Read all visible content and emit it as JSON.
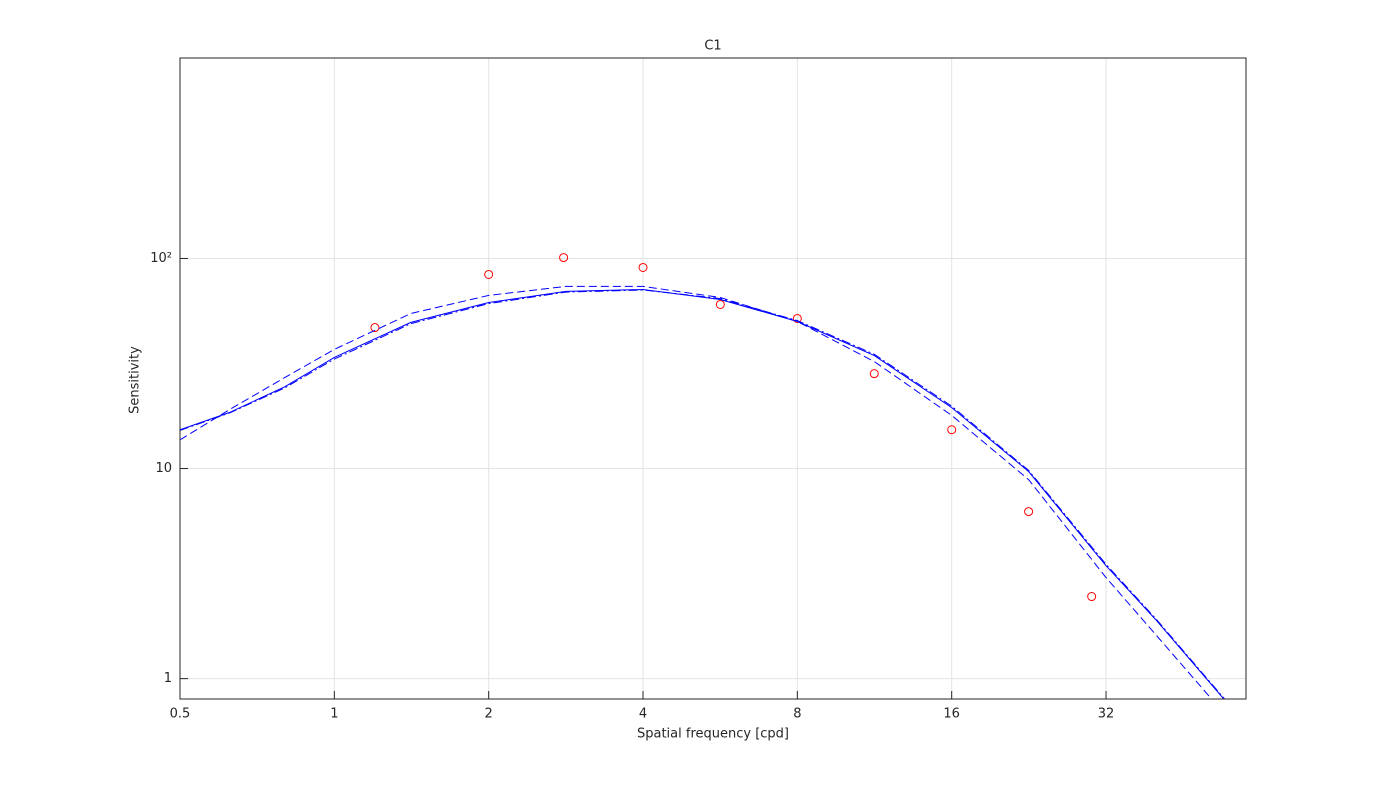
{
  "chart_data": {
    "type": "line",
    "title": "C1",
    "x_label": "Spatial frequency [cpd]",
    "y_label": "Sensitivity",
    "x_scale": "log",
    "y_scale": "log",
    "grid": true,
    "xlim": [
      0.5,
      60
    ],
    "ylim": [
      0.8,
      900
    ],
    "xticks": [
      0.5,
      1,
      2,
      4,
      8,
      16,
      32
    ],
    "yticks": [
      1,
      10,
      {
        "value": 100,
        "label": "10²"
      }
    ],
    "series": [
      {
        "type": "scatter",
        "color": "#ff0000",
        "x": [
          1.2,
          2,
          2.8,
          4,
          5.66,
          8,
          11.3,
          16,
          22.6,
          30
        ],
        "values": [
          46.9,
          83.9,
          101,
          90.6,
          60.4,
          51.8,
          28.3,
          15.3,
          6.24,
          2.46
        ]
      },
      {
        "type": "line",
        "style": "solid",
        "color": "#0000ff",
        "x": [
          0.5,
          0.625,
          0.8,
          1,
          1.41,
          2,
          2.83,
          4,
          5.66,
          8,
          11.3,
          16,
          22.6,
          32,
          40,
          54.3
        ],
        "values": [
          15.3,
          18.5,
          24.5,
          33.8,
          49.6,
          61.7,
          69.7,
          71.2,
          63.8,
          50.1,
          34.5,
          19.5,
          9.68,
          3.45,
          1.91,
          0.8
        ]
      },
      {
        "type": "line",
        "style": "dashdot",
        "color": "#0000ff",
        "x": [
          0.5,
          0.625,
          0.8,
          1,
          1.41,
          2,
          2.83,
          4,
          5.66,
          8,
          11.3,
          16,
          22.6,
          32,
          40,
          54.5
        ],
        "values": [
          15.2,
          18.4,
          24.2,
          33.2,
          48.9,
          61.0,
          69.2,
          70.8,
          64.4,
          50.6,
          35.0,
          19.8,
          9.8,
          3.5,
          1.93,
          0.8
        ]
      },
      {
        "type": "line",
        "style": "dashed",
        "color": "#0000ff",
        "x": [
          0.5,
          0.625,
          0.8,
          1,
          1.41,
          2,
          2.83,
          4,
          5.66,
          8,
          11.3,
          16,
          22.6,
          32,
          40,
          51.4
        ],
        "values": [
          13.7,
          19.1,
          27.1,
          36.9,
          54.7,
          66.7,
          73.6,
          73.6,
          65.2,
          50.1,
          32.3,
          17.9,
          8.86,
          3.03,
          1.62,
          0.8
        ]
      }
    ]
  }
}
